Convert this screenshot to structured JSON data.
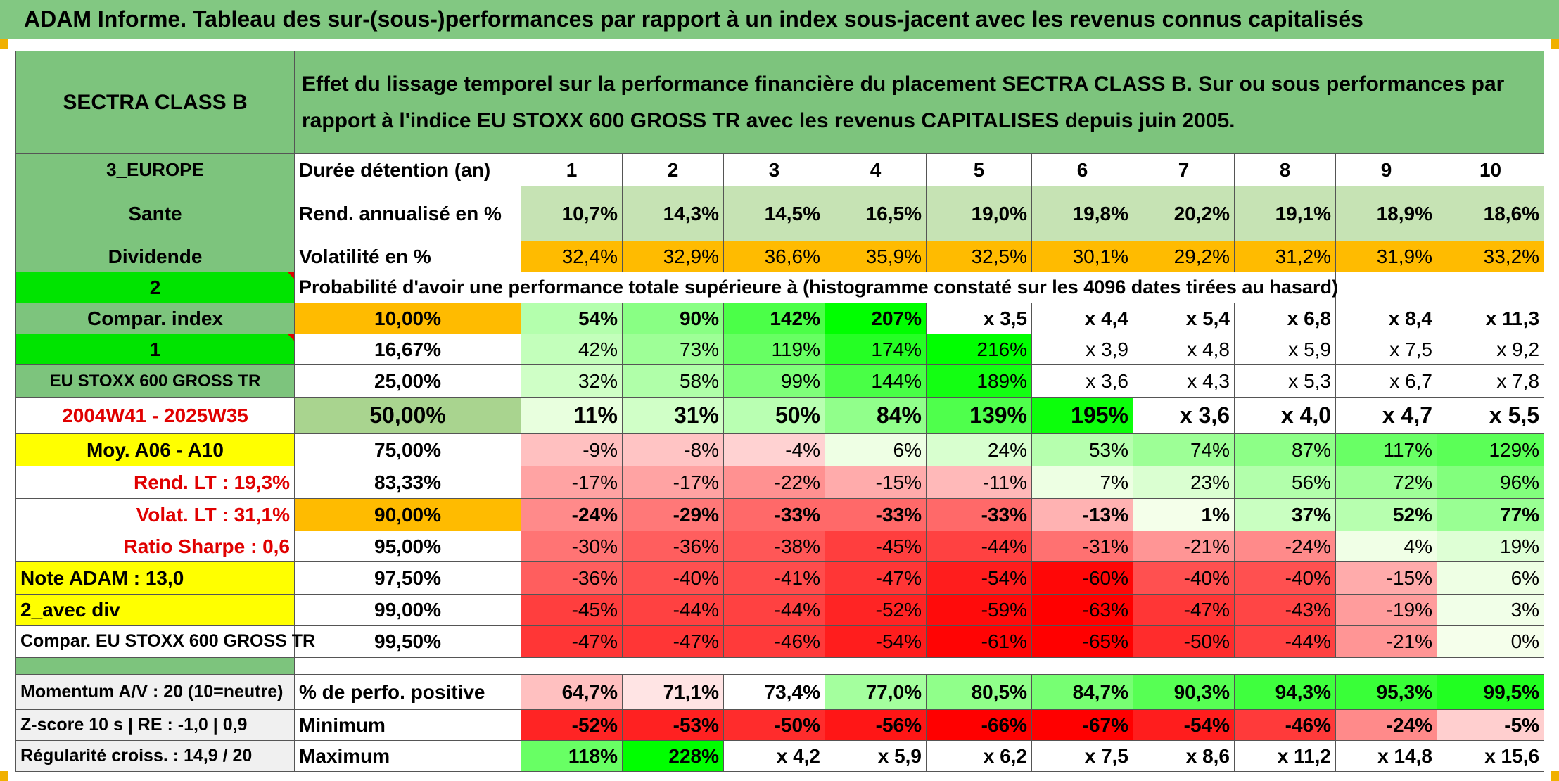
{
  "title": "ADAM Informe. Tableau des sur-(sous-)performances par rapport à un index sous-jacent avec les revenus connus capitalisés",
  "header": {
    "fund": "SECTRA CLASS B",
    "description": "Effet du lissage temporel sur la performance financière du placement SECTRA CLASS B. Sur ou sous performances par rapport à l'indice EU STOXX 600 GROSS TR avec les revenus CAPITALISES depuis juin 2005."
  },
  "left": {
    "region": "3_EUROPE",
    "sector": "Sante",
    "dividend": "Dividende",
    "two": "2",
    "compar_index": "Compar. index",
    "one": "1",
    "index_name": "EU STOXX 600 GROSS TR",
    "period": "2004W41 - 2025W35",
    "moy": "Moy. A06 - A10",
    "rend_lt": "Rend. LT :   19,3%",
    "volat_lt": "Volat. LT :   31,1%",
    "sharpe": "Ratio Sharpe :    0,6",
    "note": "Note ADAM : 13,0",
    "avec_div": "2_avec div",
    "compar2": "Compar. EU STOXX 600 GROSS TR",
    "momentum": "Momentum A/V : 20 (10=neutre)",
    "zscore": "Z-score 10 s | RE : -1,0 | 0,9",
    "regularite": "Régularité croiss. : 14,9 / 20"
  },
  "rows_label": {
    "duree": "Durée détention (an)",
    "rend": "Rend. annualisé en %",
    "vol": "Volatilité en %",
    "proba": "Probabilité d'avoir une performance totale supérieure à (histogramme constaté sur les 4096 dates tirées au hasard)",
    "positive": "% de perfo. positive",
    "minimum": "Minimum",
    "maximum": "Maximum"
  },
  "durations": [
    "1",
    "2",
    "3",
    "4",
    "5",
    "6",
    "7",
    "8",
    "9",
    "10"
  ],
  "rend": [
    "10,7%",
    "14,3%",
    "14,5%",
    "16,5%",
    "19,0%",
    "19,8%",
    "20,2%",
    "19,1%",
    "18,9%",
    "18,6%"
  ],
  "vol": [
    "32,4%",
    "32,9%",
    "36,6%",
    "35,9%",
    "32,5%",
    "30,1%",
    "29,2%",
    "31,2%",
    "31,9%",
    "33,2%"
  ],
  "prob_rows": [
    {
      "p": "10,00%",
      "v": [
        "54%",
        "90%",
        "142%",
        "207%",
        "x 3,5",
        "x 4,4",
        "x 5,4",
        "x 6,8",
        "x 8,4",
        "x 11,3"
      ]
    },
    {
      "p": "16,67%",
      "v": [
        "42%",
        "73%",
        "119%",
        "174%",
        "216%",
        "x 3,9",
        "x 4,8",
        "x 5,9",
        "x 7,5",
        "x 9,2"
      ]
    },
    {
      "p": "25,00%",
      "v": [
        "32%",
        "58%",
        "99%",
        "144%",
        "189%",
        "x 3,6",
        "x 4,3",
        "x 5,3",
        "x 6,7",
        "x 7,8"
      ]
    },
    {
      "p": "50,00%",
      "v": [
        "11%",
        "31%",
        "50%",
        "84%",
        "139%",
        "195%",
        "x 3,6",
        "x 4,0",
        "x 4,7",
        "x 5,5"
      ]
    },
    {
      "p": "75,00%",
      "v": [
        "-9%",
        "-8%",
        "-4%",
        "6%",
        "24%",
        "53%",
        "74%",
        "87%",
        "117%",
        "129%"
      ]
    },
    {
      "p": "83,33%",
      "v": [
        "-17%",
        "-17%",
        "-22%",
        "-15%",
        "-11%",
        "7%",
        "23%",
        "56%",
        "72%",
        "96%"
      ]
    },
    {
      "p": "90,00%",
      "v": [
        "-24%",
        "-29%",
        "-33%",
        "-33%",
        "-33%",
        "-13%",
        "1%",
        "37%",
        "52%",
        "77%"
      ]
    },
    {
      "p": "95,00%",
      "v": [
        "-30%",
        "-36%",
        "-38%",
        "-45%",
        "-44%",
        "-31%",
        "-21%",
        "-24%",
        "4%",
        "19%"
      ]
    },
    {
      "p": "97,50%",
      "v": [
        "-36%",
        "-40%",
        "-41%",
        "-47%",
        "-54%",
        "-60%",
        "-40%",
        "-40%",
        "-15%",
        "6%"
      ]
    },
    {
      "p": "99,00%",
      "v": [
        "-45%",
        "-44%",
        "-44%",
        "-52%",
        "-59%",
        "-63%",
        "-47%",
        "-43%",
        "-19%",
        "3%"
      ]
    },
    {
      "p": "99,50%",
      "v": [
        "-47%",
        "-47%",
        "-46%",
        "-54%",
        "-61%",
        "-65%",
        "-50%",
        "-44%",
        "-21%",
        "0%"
      ]
    }
  ],
  "positive": [
    "64,7%",
    "71,1%",
    "73,4%",
    "77,0%",
    "80,5%",
    "84,7%",
    "90,3%",
    "94,3%",
    "95,3%",
    "99,5%"
  ],
  "minimum": [
    "-52%",
    "-53%",
    "-50%",
    "-56%",
    "-66%",
    "-67%",
    "-54%",
    "-46%",
    "-24%",
    "-5%"
  ],
  "maximum": [
    "118%",
    "228%",
    "x 4,2",
    "x 5,9",
    "x 6,2",
    "x 7,5",
    "x 8,6",
    "x 11,2",
    "x 14,8",
    "x 15,6"
  ],
  "colors": {
    "header_green": "#7dc47d",
    "bright_green": "#00e400",
    "orange": "#ffb800",
    "yellow": "#ffff00",
    "red_text": "#e00000"
  }
}
